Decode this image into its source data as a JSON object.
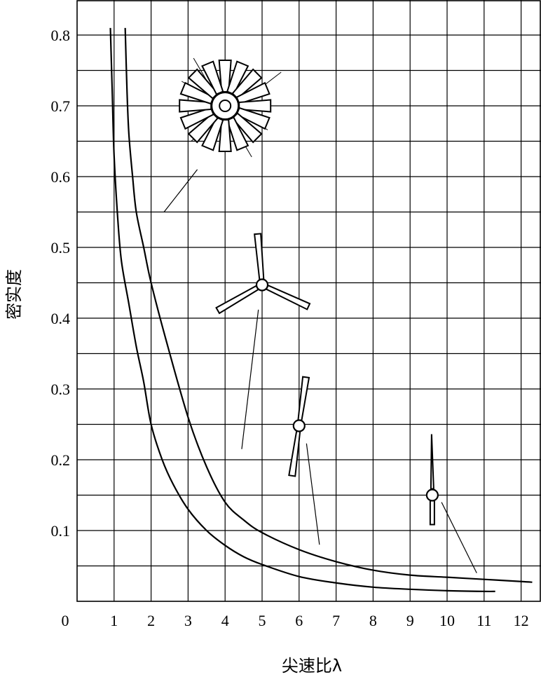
{
  "chart_data": {
    "type": "line",
    "xlabel": "尖速比λ",
    "ylabel": "密实度",
    "x_ticks": [
      "0",
      "1",
      "2",
      "3",
      "4",
      "5",
      "6",
      "7",
      "8",
      "9",
      "10",
      "11",
      "12"
    ],
    "y_ticks": [
      "0.1",
      "0.2",
      "0.3",
      "0.4",
      "0.5",
      "0.6",
      "0.7",
      "0.8"
    ],
    "xlim": [
      0,
      12.5
    ],
    "ylim": [
      0,
      0.83
    ],
    "grid": true,
    "series": [
      {
        "x": [
          0.9,
          0.95,
          1.0,
          1.1,
          1.2,
          1.4,
          1.6,
          1.8,
          2.0,
          2.3,
          2.6,
          3.0,
          3.5,
          4.0,
          4.5,
          5.0,
          6.0,
          7.0,
          8.0,
          9.0,
          10.0,
          11.0,
          11.3
        ],
        "y": [
          0.81,
          0.72,
          0.63,
          0.54,
          0.48,
          0.42,
          0.36,
          0.31,
          0.25,
          0.2,
          0.165,
          0.13,
          0.1,
          0.079,
          0.063,
          0.052,
          0.035,
          0.026,
          0.02,
          0.017,
          0.015,
          0.014,
          0.014
        ]
      },
      {
        "x": [
          1.3,
          1.35,
          1.4,
          1.5,
          1.6,
          1.8,
          2.0,
          2.4,
          3.0,
          3.5,
          4.0,
          4.5,
          5.0,
          6.0,
          7.0,
          8.0,
          9.0,
          10.0,
          11.0,
          12.0,
          12.3
        ],
        "y": [
          0.81,
          0.72,
          0.66,
          0.6,
          0.55,
          0.5,
          0.45,
          0.37,
          0.26,
          0.19,
          0.14,
          0.115,
          0.097,
          0.073,
          0.056,
          0.044,
          0.037,
          0.034,
          0.031,
          0.028,
          0.027
        ]
      }
    ],
    "annotations": [
      {
        "name": "multi-blade-rotor",
        "hub": [
          4.0,
          0.7
        ],
        "leader_to": [
          2.35,
          0.55
        ]
      },
      {
        "name": "three-blade-rotor",
        "hub": [
          5.0,
          0.447
        ],
        "leader_to": [
          4.45,
          0.215
        ]
      },
      {
        "name": "two-blade-rotor",
        "hub": [
          6.0,
          0.248
        ],
        "leader_to": [
          6.55,
          0.08
        ]
      },
      {
        "name": "one-blade-rotor",
        "hub": [
          9.6,
          0.15
        ],
        "leader_to": [
          10.8,
          0.04
        ]
      }
    ]
  }
}
